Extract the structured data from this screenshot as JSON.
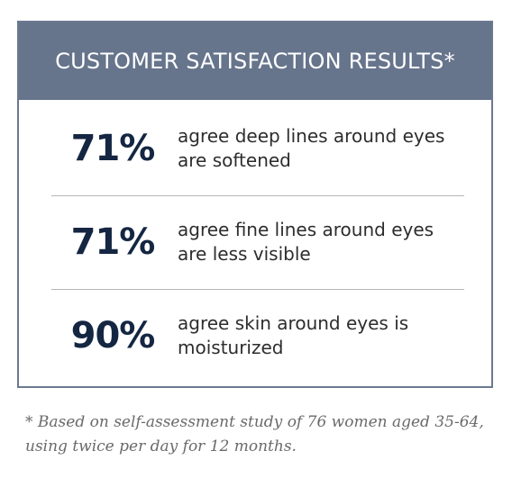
{
  "header": {
    "title": "CUSTOMER SATISFACTION RESULTS*"
  },
  "stats": [
    {
      "value": "71%",
      "line1": "agree deep lines around eyes",
      "line2": "are softened"
    },
    {
      "value": "71%",
      "line1": "agree fine lines around eyes",
      "line2": "are less visible"
    },
    {
      "value": "90%",
      "line1": "agree skin around eyes is",
      "line2": "moisturized"
    }
  ],
  "footnote": {
    "line1": "* Based on self-assessment study of 76 women aged 35-64,",
    "line2": "using twice per day for 12 months."
  },
  "colors": {
    "header_background": "#66748c",
    "border": "#6b7990",
    "stat_value": "#142642",
    "body_text": "#2d2d2d",
    "footnote_text": "#6a6a6a"
  }
}
